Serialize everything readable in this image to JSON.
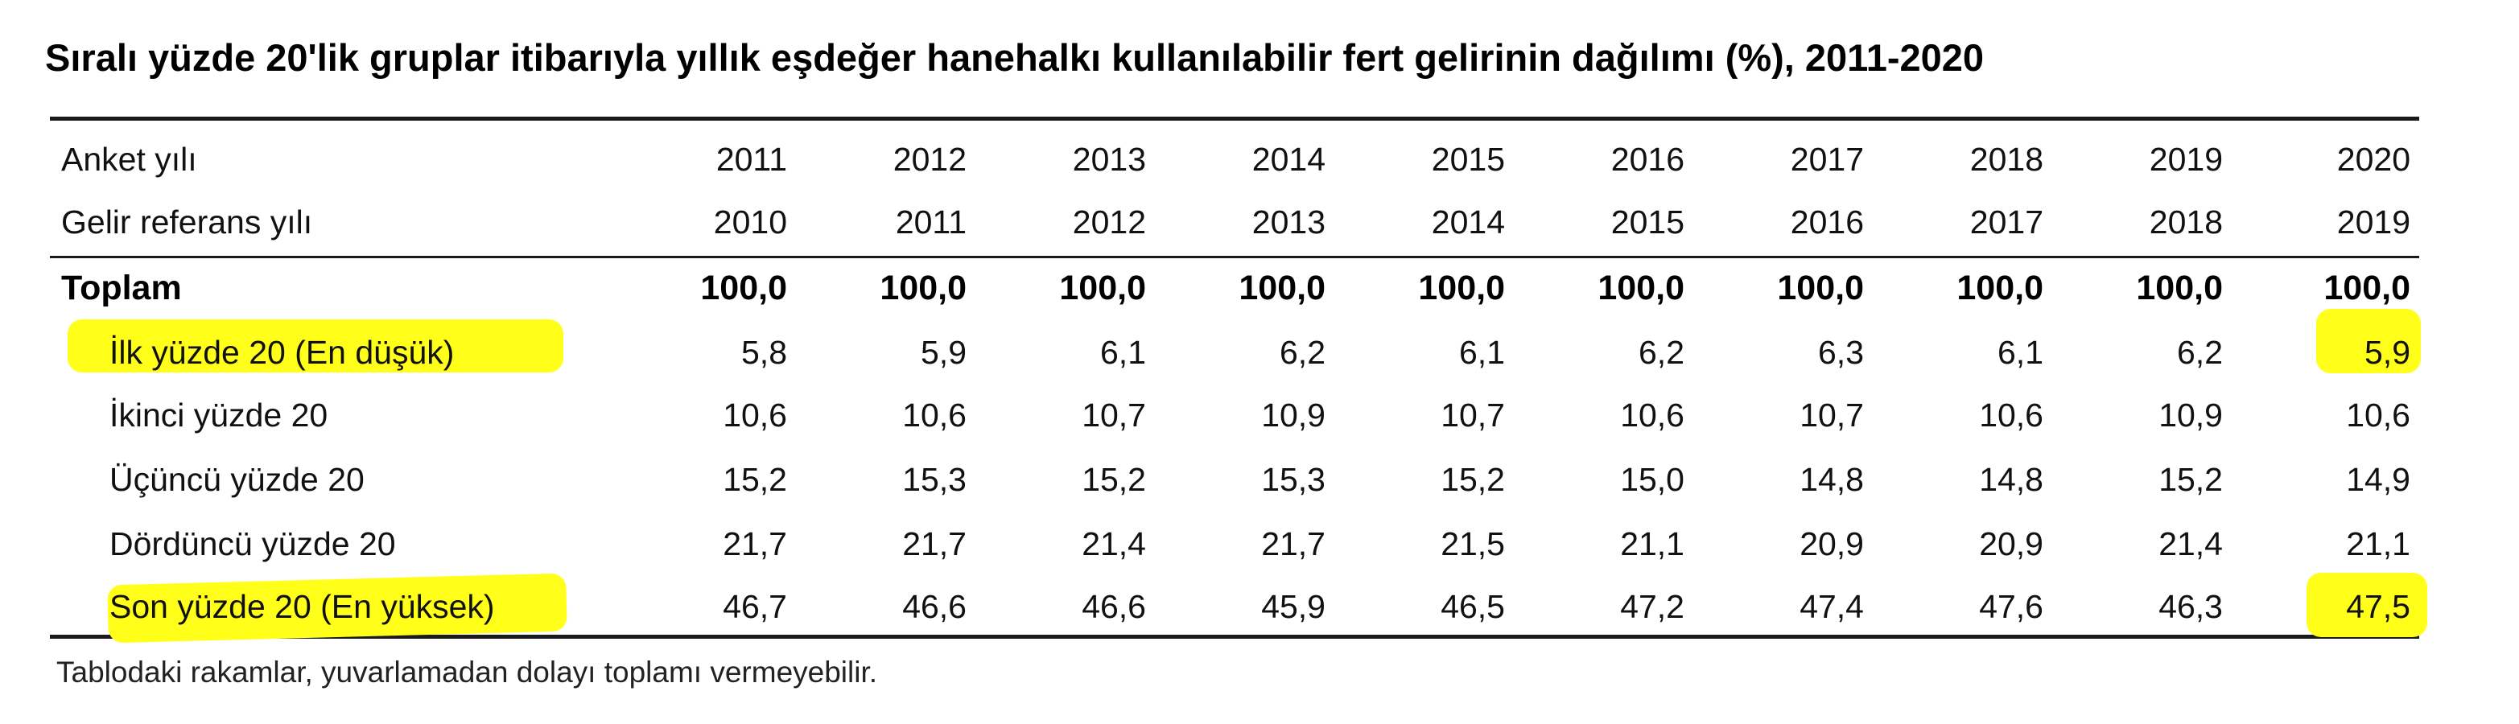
{
  "title": "Sıralı yüzde 20'lik gruplar itibarıyla yıllık eşdeğer hanehalkı kullanılabilir fert gelirinin dağılımı (%), 2011-2020",
  "highlight_color": "#ffff1a",
  "rows": [
    {
      "label": "Anket yılı",
      "values": [
        "2011",
        "2012",
        "2013",
        "2014",
        "2015",
        "2016",
        "2017",
        "2018",
        "2019",
        "2020"
      ]
    },
    {
      "label": "Gelir referans yılı",
      "values": [
        "2010",
        "2011",
        "2012",
        "2013",
        "2014",
        "2015",
        "2016",
        "2017",
        "2018",
        "2019"
      ]
    },
    {
      "label": "Toplam",
      "values": [
        "100,0",
        "100,0",
        "100,0",
        "100,0",
        "100,0",
        "100,0",
        "100,0",
        "100,0",
        "100,0",
        "100,0"
      ]
    },
    {
      "label": "İlk yüzde 20 (En düşük)",
      "values": [
        "5,8",
        "5,9",
        "6,1",
        "6,2",
        "6,1",
        "6,2",
        "6,3",
        "6,1",
        "6,2",
        "5,9"
      ]
    },
    {
      "label": "İkinci yüzde 20",
      "values": [
        "10,6",
        "10,6",
        "10,7",
        "10,9",
        "10,7",
        "10,6",
        "10,7",
        "10,6",
        "10,9",
        "10,6"
      ]
    },
    {
      "label": "Üçüncü yüzde 20",
      "values": [
        "15,2",
        "15,3",
        "15,2",
        "15,3",
        "15,2",
        "15,0",
        "14,8",
        "14,8",
        "15,2",
        "14,9"
      ]
    },
    {
      "label": "Dördüncü yüzde 20",
      "values": [
        "21,7",
        "21,7",
        "21,4",
        "21,7",
        "21,5",
        "21,1",
        "20,9",
        "20,9",
        "21,4",
        "21,1"
      ]
    },
    {
      "label": "Son yüzde 20 (En yüksek)",
      "values": [
        "46,7",
        "46,6",
        "46,6",
        "45,9",
        "46,5",
        "47,2",
        "47,4",
        "47,6",
        "46,3",
        "47,5"
      ]
    }
  ],
  "footnote": "Tablodaki rakamlar, yuvarlamadan dolayı toplamı vermeyebilir."
}
